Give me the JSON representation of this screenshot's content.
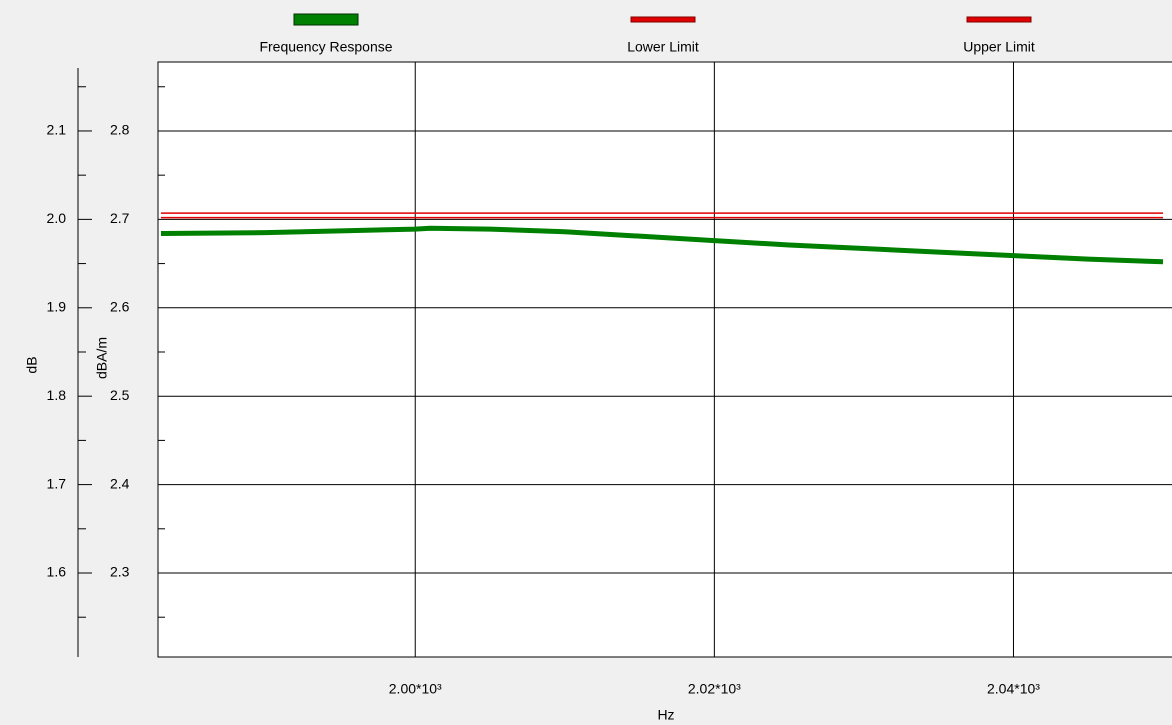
{
  "chart_data": {
    "type": "line",
    "legend": "top",
    "grid": true,
    "x_label": "Hz",
    "y_label": "dB",
    "y2_label": "dBA/m",
    "xlim": [
      1982.8,
      2050.6
    ],
    "xticks": [
      {
        "value": 2000,
        "label": "2.00*10³"
      },
      {
        "value": 2020,
        "label": "2.02*10³"
      },
      {
        "value": 2040,
        "label": "2.04*10³"
      }
    ],
    "ylim": [
      1.505,
      2.178
    ],
    "yticks": [
      1.6,
      1.7,
      1.8,
      1.9,
      {
        "value": 2,
        "label": "2.0"
      },
      2.1
    ],
    "y2lim": [
      2.205,
      2.878
    ],
    "y2ticks": [
      2.3,
      2.4,
      2.5,
      2.6,
      2.7,
      2.8
    ],
    "x": [
      1983,
      1990,
      1995,
      2000,
      2001,
      2005,
      2010,
      2015,
      2020,
      2025,
      2030,
      2035,
      2040,
      2045,
      2050
    ],
    "series": [
      {
        "name": "Frequency Response",
        "color": "#008000",
        "axis": "y2",
        "values": [
          2.684,
          2.685,
          2.687,
          2.689,
          2.69,
          2.689,
          2.686,
          2.681,
          2.676,
          2.671,
          2.667,
          2.663,
          2.659,
          2.655,
          2.652
        ]
      },
      {
        "name": "Lower Limit",
        "color": "#e00000",
        "axis": "y2",
        "values": [
          2.702,
          2.702,
          2.702,
          2.702,
          2.702,
          2.702,
          2.702,
          2.702,
          2.702,
          2.702,
          2.702,
          2.702,
          2.702,
          2.702,
          2.702
        ]
      },
      {
        "name": "Upper Limit",
        "color": "#e00000",
        "axis": "y2",
        "values": [
          2.707,
          2.707,
          2.707,
          2.707,
          2.707,
          2.707,
          2.707,
          2.707,
          2.707,
          2.707,
          2.707,
          2.707,
          2.707,
          2.707,
          2.707
        ]
      }
    ]
  }
}
